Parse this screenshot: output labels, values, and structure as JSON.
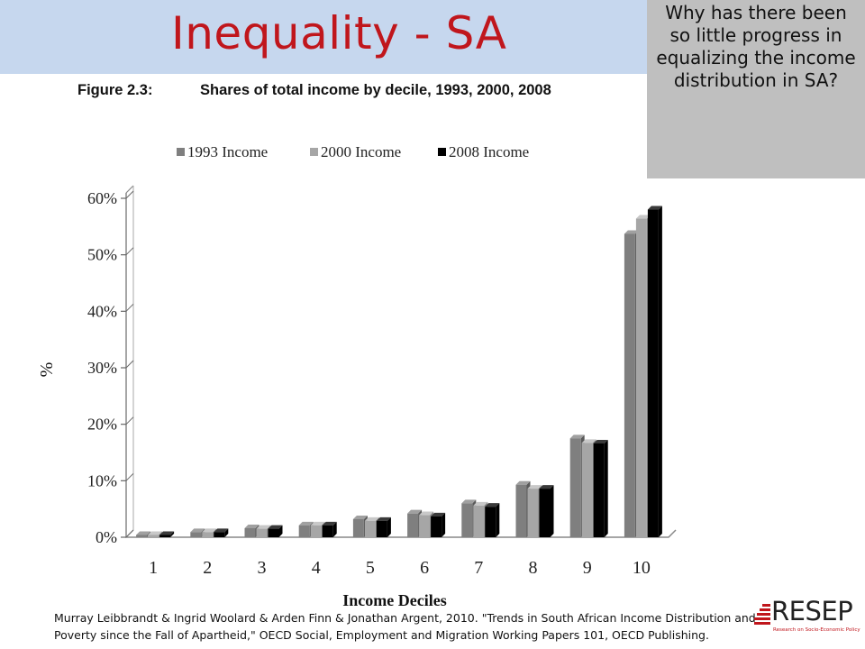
{
  "slide": {
    "title": "Inequality - SA",
    "callout": "Why has there been so little progress in equalizing the income distribution in SA?",
    "citation": "Murray Leibbrandt & Ingrid Woolard & Arden Finn & Jonathan Argent, 2010. \"Trends in South African Income Distribution and Poverty since the Fall of Apartheid,\" OECD Social, Employment and Migration Working Papers 101, OECD Publishing."
  },
  "figure": {
    "label": "Figure 2.3:",
    "title": "Shares of total income by decile, 1993, 2000, 2008"
  },
  "logo": {
    "text": "RESEP",
    "tagline": "Research on Socio-Economic Policy"
  },
  "colors": {
    "title_red": "#c0161c",
    "title_band": "#c6d7ee",
    "callout_bg": "#bfbfbf",
    "series_1993": "#7f7f7f",
    "series_2000": "#a6a6a6",
    "series_2008": "#000000"
  },
  "chart_data": {
    "type": "bar",
    "categories": [
      "1",
      "2",
      "3",
      "4",
      "5",
      "6",
      "7",
      "8",
      "9",
      "10"
    ],
    "series": [
      {
        "name": "1993 Income",
        "values": [
          0.4,
          0.9,
          1.6,
          2.1,
          3.2,
          4.2,
          6.0,
          9.3,
          17.5,
          53.7
        ]
      },
      {
        "name": "2000 Income",
        "values": [
          0.4,
          0.9,
          1.5,
          2.1,
          2.9,
          3.9,
          5.6,
          8.6,
          16.7,
          56.4
        ]
      },
      {
        "name": "2008 Income",
        "values": [
          0.4,
          0.9,
          1.5,
          2.1,
          2.9,
          3.7,
          5.4,
          8.6,
          16.6,
          58.0
        ]
      }
    ],
    "title": "Shares of total income by decile, 1993, 2000, 2008",
    "xlabel": "Income Deciles",
    "ylabel": "%",
    "ylim": [
      0,
      60
    ],
    "yticks": [
      "0%",
      "10%",
      "20%",
      "30%",
      "40%",
      "50%",
      "60%"
    ],
    "grid": false,
    "legend_position": "top"
  }
}
